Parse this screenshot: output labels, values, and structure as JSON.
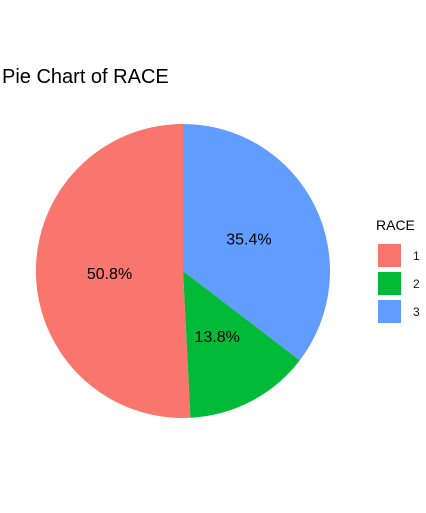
{
  "chart_data": {
    "type": "pie",
    "title": "Pie Chart of RACE",
    "legend": {
      "title": "RACE",
      "placement": "right"
    },
    "slices": [
      {
        "category": "1",
        "value": 50.8,
        "label": "50.8%",
        "color": "#F8766D"
      },
      {
        "category": "2",
        "value": 13.8,
        "label": "13.8%",
        "color": "#00BA38"
      },
      {
        "category": "3",
        "value": 35.4,
        "label": "35.4%",
        "color": "#619CFF"
      }
    ]
  }
}
